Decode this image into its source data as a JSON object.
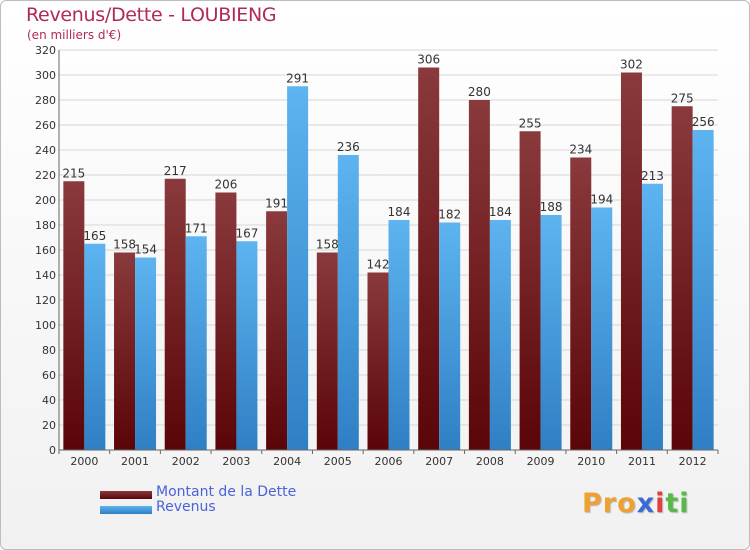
{
  "title": "Revenus/Dette - LOUBIENG",
  "subtitle": "(en milliers d'€)",
  "logo": "Proxiti",
  "legend": [
    {
      "label": "Montant de la Dette",
      "color": "#6b0d12"
    },
    {
      "label": "Revenus",
      "color": "#4aa3e6"
    }
  ],
  "colors": {
    "dette": "#6b0d12",
    "revenus": "#4aa3e6",
    "title": "#b12a57"
  },
  "chart_data": {
    "type": "bar",
    "title": "Revenus/Dette - LOUBIENG",
    "ylabel": "(en milliers d'€)",
    "ylim": [
      0,
      320
    ],
    "yticks": [
      0,
      20,
      40,
      60,
      80,
      100,
      120,
      140,
      160,
      180,
      200,
      220,
      240,
      260,
      280,
      300,
      320
    ],
    "grid": true,
    "legend_position": "bottom-left",
    "categories": [
      "2000",
      "2001",
      "2002",
      "2003",
      "2004",
      "2005",
      "2006",
      "2007",
      "2008",
      "2009",
      "2010",
      "2011",
      "2012"
    ],
    "series": [
      {
        "name": "Montant de la Dette",
        "values": [
          215,
          158,
          217,
          206,
          191,
          158,
          142,
          306,
          280,
          255,
          234,
          302,
          275
        ]
      },
      {
        "name": "Revenus",
        "values": [
          165,
          154,
          171,
          167,
          291,
          236,
          184,
          182,
          184,
          188,
          194,
          213,
          256
        ]
      }
    ]
  }
}
